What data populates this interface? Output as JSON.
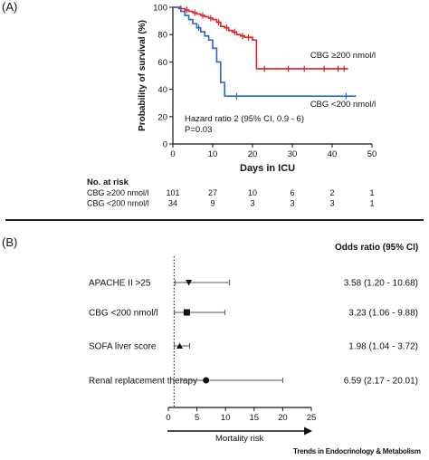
{
  "panel_a": {
    "label": "(A)",
    "ylabel": "Probability of survival (%)",
    "xlabel": "Days in ICU",
    "annotation_line1": "Hazard ratio 2 (95% CI, 0.9 - 6)",
    "annotation_line2": "P=0.03",
    "risk_title": "No. at risk",
    "risk_rows": [
      {
        "label": "CBG ≥200 nmol/l",
        "values": [
          "101",
          "27",
          "10",
          "6",
          "2",
          "1"
        ]
      },
      {
        "label": "CBG <200 nmol/l",
        "values": [
          "34",
          "9",
          "3",
          "3",
          "3",
          "1"
        ]
      }
    ]
  },
  "panel_b": {
    "label": "(B)",
    "odds_header": "Odds ratio (95% CI)",
    "xlabel": "Mortality risk"
  },
  "brand": "Trends in Endocrinology & Metabolism",
  "colors": {
    "high": "#e02020",
    "low": "#2a66c8",
    "axis": "#111111"
  },
  "chart_data": [
    {
      "type": "line",
      "title": "",
      "xlabel": "Days in ICU",
      "ylabel": "Probability of survival (%)",
      "xlim": [
        0,
        50
      ],
      "ylim": [
        0,
        100
      ],
      "xticks": [
        0,
        10,
        20,
        30,
        40,
        50
      ],
      "yticks": [
        0,
        20,
        40,
        60,
        80,
        100
      ],
      "series": [
        {
          "name": "CBG ≥200 nmol/l",
          "color": "#e02020",
          "steps": [
            [
              0,
              100
            ],
            [
              1.5,
              99
            ],
            [
              3,
              98
            ],
            [
              4,
              97
            ],
            [
              5,
              96
            ],
            [
              6,
              95
            ],
            [
              7,
              94
            ],
            [
              8,
              93
            ],
            [
              9,
              92
            ],
            [
              10,
              91
            ],
            [
              11,
              89
            ],
            [
              12,
              86
            ],
            [
              13,
              85
            ],
            [
              14,
              83
            ],
            [
              15,
              82
            ],
            [
              16,
              80
            ],
            [
              17,
              79
            ],
            [
              18,
              78
            ],
            [
              20,
              76
            ],
            [
              21,
              55
            ],
            [
              28,
              55
            ],
            [
              44,
              55
            ]
          ],
          "censor_x": [
            2,
            3.5,
            5.5,
            7.5,
            9.5,
            11.5,
            13.5,
            15.5,
            17.5,
            19,
            23,
            29,
            33,
            38,
            41.5,
            43
          ]
        },
        {
          "name": "CBG <200 nmol/l",
          "color": "#2a66c8",
          "steps": [
            [
              0,
              100
            ],
            [
              2,
              97
            ],
            [
              3,
              94
            ],
            [
              4,
              91
            ],
            [
              5,
              88
            ],
            [
              6,
              85
            ],
            [
              7,
              82
            ],
            [
              8,
              79
            ],
            [
              9,
              76
            ],
            [
              10,
              70
            ],
            [
              11,
              60
            ],
            [
              12,
              45
            ],
            [
              13,
              35
            ],
            [
              16,
              35
            ],
            [
              46,
              35
            ]
          ],
          "censor_x": [
            6.5,
            16,
            43.5
          ]
        }
      ],
      "legend": [
        {
          "text": "CBG ≥200 nmol/l",
          "placement": "right",
          "series": 0
        },
        {
          "text": "CBG <200 nmol/l",
          "placement": "bottom-right",
          "series": 1
        }
      ]
    },
    {
      "type": "forest",
      "xlabel": "Mortality risk",
      "xlim": [
        0,
        25
      ],
      "xticks": [
        0,
        5,
        10,
        15,
        20,
        25
      ],
      "reference_line": 1,
      "rows": [
        {
          "label": "APACHE II >25",
          "or": 3.58,
          "lo": 1.2,
          "hi": 10.68,
          "text": "3.58 (1.20 - 10.68)",
          "marker": "triangle-down"
        },
        {
          "label": "CBG <200 nmol/l",
          "or": 3.23,
          "lo": 1.06,
          "hi": 9.88,
          "text": "3.23 (1.06 - 9.88)",
          "marker": "square"
        },
        {
          "label": "SOFA liver score",
          "or": 1.98,
          "lo": 1.04,
          "hi": 3.72,
          "text": "1.98 (1.04 - 3.72)",
          "marker": "triangle-up"
        },
        {
          "label": "Renal replacement therapy",
          "or": 6.59,
          "lo": 2.17,
          "hi": 20.01,
          "text": "6.59 (2.17 - 20.01)",
          "marker": "circle"
        }
      ]
    }
  ]
}
